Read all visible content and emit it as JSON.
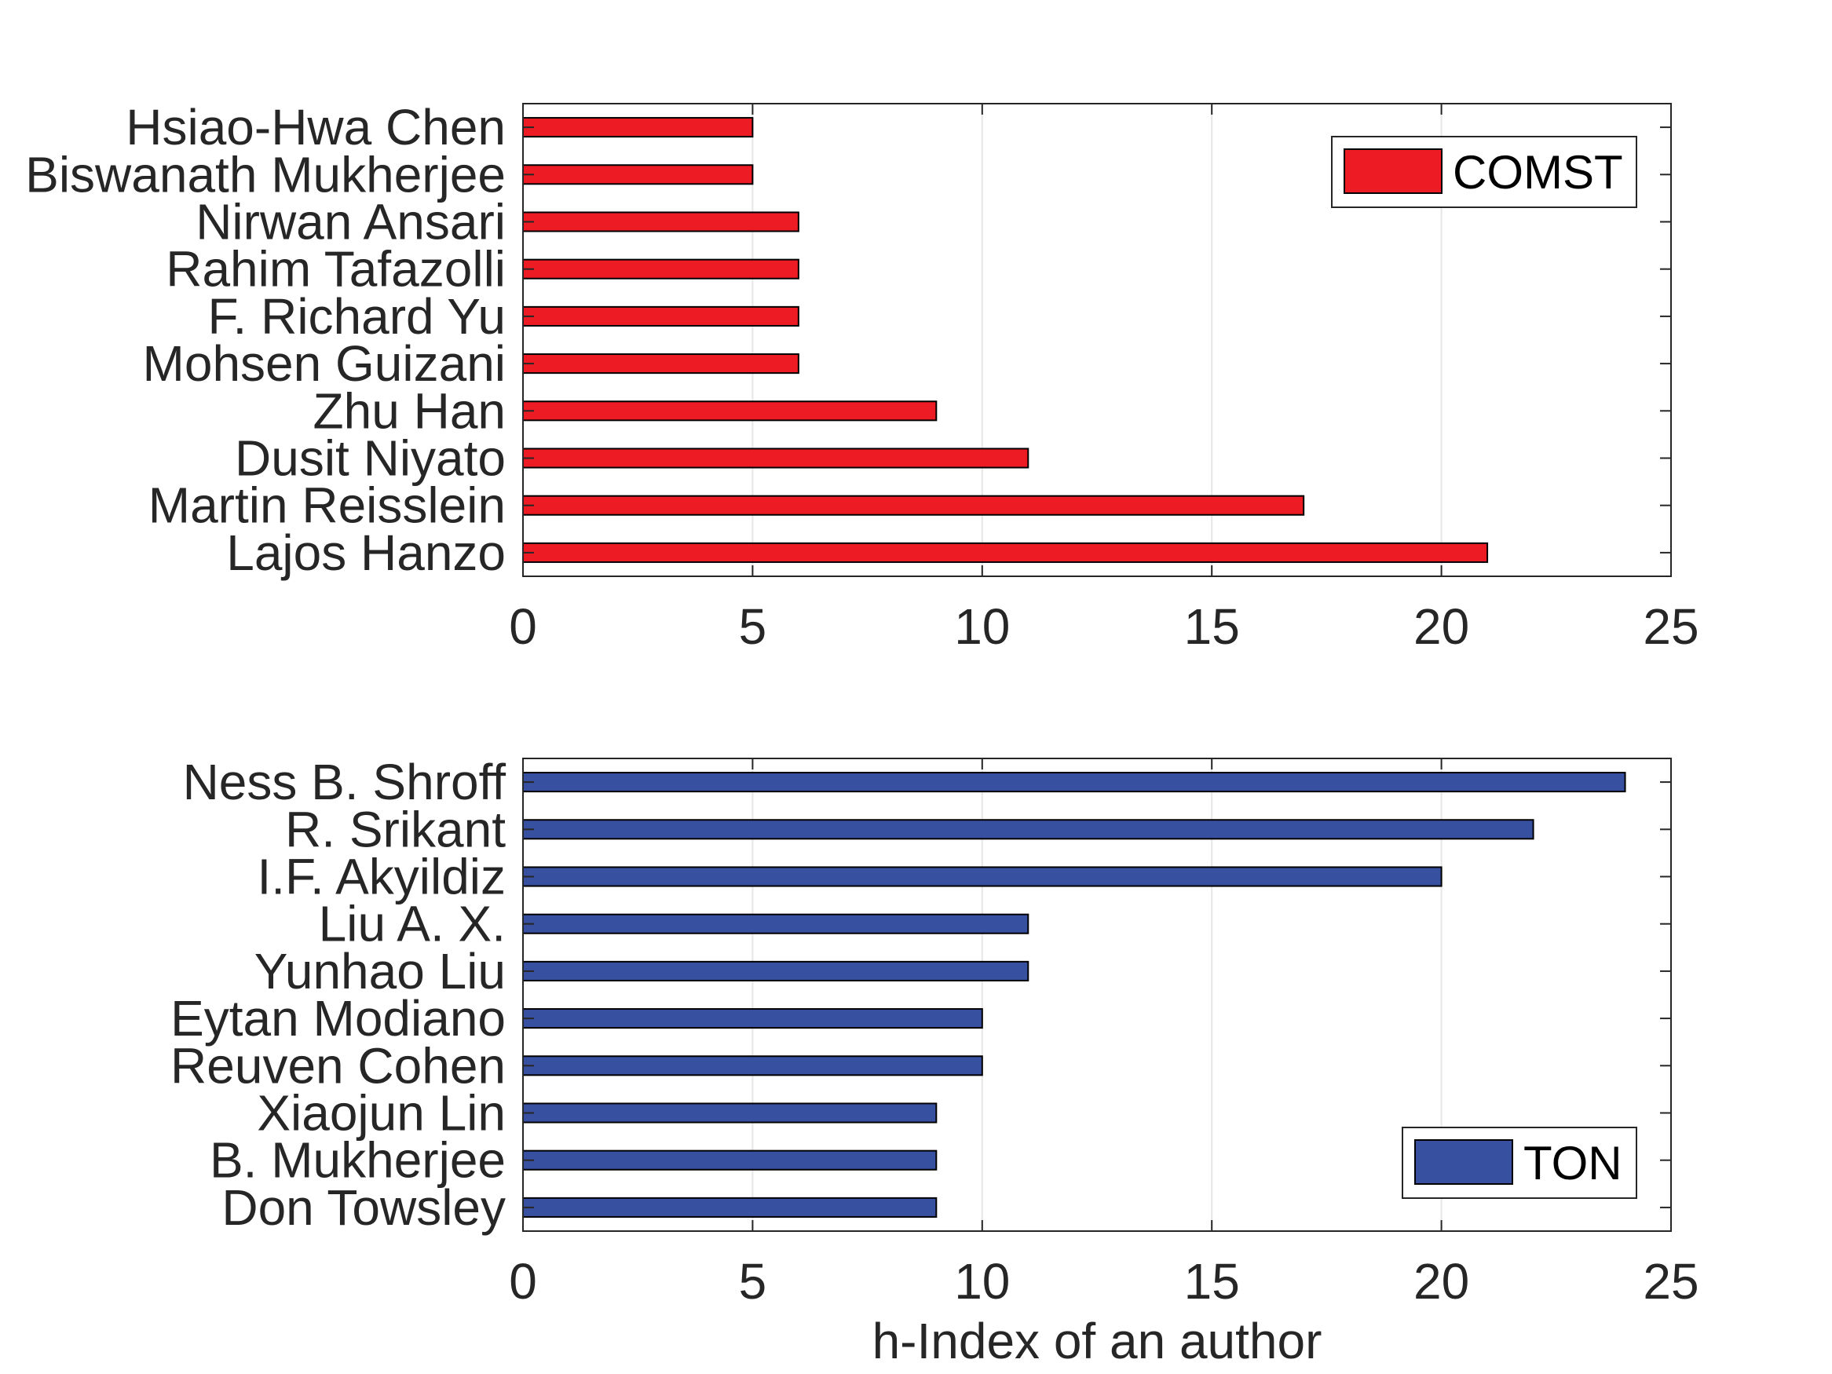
{
  "colors": {
    "comst": "#ed1c24",
    "ton": "#3750a0",
    "axis": "#262626",
    "grid": "#e6e6e6",
    "bar_edge": "#000000"
  },
  "chart_data": [
    {
      "type": "bar",
      "orientation": "horizontal",
      "categories": [
        "Lajos Hanzo",
        "Martin Reisslein",
        "Dusit Niyato",
        "Zhu Han",
        "Mohsen Guizani",
        "F. Richard Yu",
        "Rahim Tafazolli",
        "Nirwan Ansari",
        "Biswanath Mukherjee",
        "Hsiao-Hwa Chen"
      ],
      "series": [
        {
          "name": "COMST",
          "values": [
            21,
            17,
            11,
            9,
            6,
            6,
            6,
            6,
            5,
            5
          ]
        }
      ],
      "xlabel": "",
      "ylabel": "",
      "xlim": [
        0,
        25
      ],
      "xticks": [
        0,
        5,
        10,
        15,
        20,
        25
      ],
      "grid": "vertical",
      "legend_position": "top-right"
    },
    {
      "type": "bar",
      "orientation": "horizontal",
      "categories": [
        "Don Towsley",
        "B. Mukherjee",
        "Xiaojun Lin",
        "Reuven Cohen",
        "Eytan Modiano",
        "Yunhao Liu",
        "Liu A. X.",
        "I.F. Akyildiz",
        "R. Srikant",
        "Ness B. Shroff"
      ],
      "series": [
        {
          "name": "TON",
          "values": [
            9,
            9,
            9,
            10,
            10,
            11,
            11,
            20,
            22,
            24
          ]
        }
      ],
      "xlabel": "h-Index of an author",
      "ylabel": "",
      "xlim": [
        0,
        25
      ],
      "xticks": [
        0,
        5,
        10,
        15,
        20,
        25
      ],
      "grid": "vertical",
      "legend_position": "bottom-right"
    }
  ]
}
